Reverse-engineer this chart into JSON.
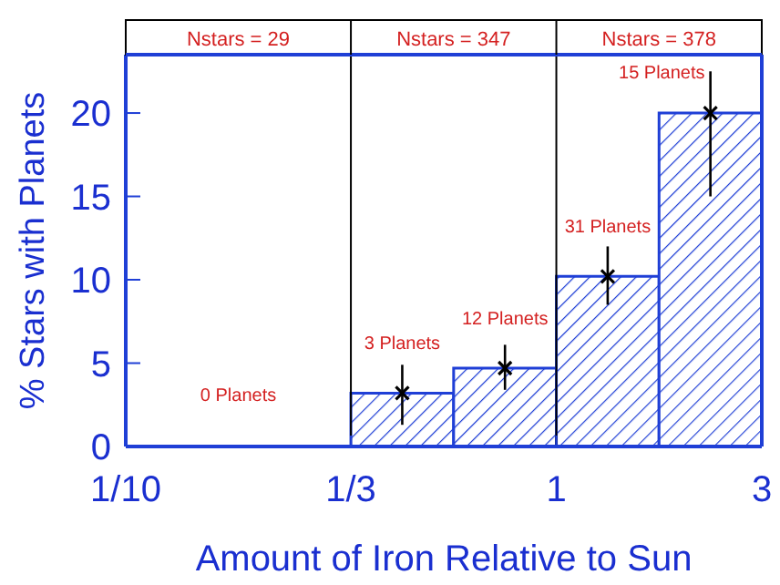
{
  "chart_data": {
    "type": "histogram",
    "xlabel": "Amount of Iron Relative to Sun",
    "ylabel": "% Stars with Planets",
    "bins": [
      0.3333,
      0.5774,
      1,
      1.732,
      3
    ],
    "values": [
      3.2,
      4.7,
      10.2,
      20
    ],
    "errors": [
      [
        1.3,
        4.9
      ],
      [
        3.4,
        6.1
      ],
      [
        8.5,
        12
      ],
      [
        15,
        22.5
      ]
    ],
    "color": "#1f3fd6",
    "marker": "cross",
    "log": "x",
    "xlim": [
      0.1,
      3
    ],
    "xticks": [
      {
        "value": 0.1,
        "label": "1/10"
      },
      {
        "value": 0.3333,
        "label": "1/3"
      },
      1,
      3
    ],
    "ylim": [
      0,
      23.5
    ],
    "yticks": [
      0,
      5,
      10,
      15,
      20
    ],
    "ref_lines": [
      {
        "axis": "x",
        "value": 0.3333,
        "color": "#000000"
      },
      {
        "axis": "x",
        "value": 1,
        "color": "#000000"
      }
    ],
    "annotations": [
      "0 Planets",
      {
        "text": "3 Planets",
        "x": 0.4387,
        "y": 3.2
      },
      {
        "text": "12 Planets",
        "x": 0.76,
        "y": 4.7
      },
      {
        "text": "31 Planets",
        "x": 1.316,
        "y": 10.2
      },
      {
        "text": "15 Planets",
        "x": 2.279,
        "y": 20
      },
      "Nstars = 29",
      "Nstars = 347",
      "Nstars = 378"
    ]
  }
}
